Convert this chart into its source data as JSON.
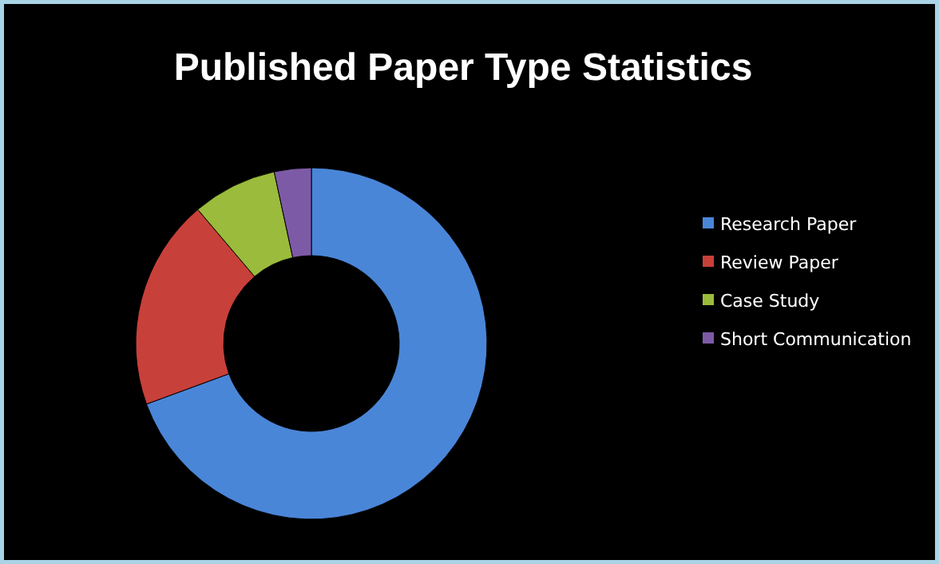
{
  "chart_data": {
    "type": "donut",
    "title": "Published Paper Type Statistics",
    "categories": [
      "Research Paper",
      "Review Paper",
      "Case Study",
      "Short Communication"
    ],
    "values": [
      69.4,
      19.4,
      7.8,
      3.4
    ],
    "colors": [
      "#4a86d8",
      "#c8403a",
      "#9bbb3c",
      "#7d5aa6"
    ],
    "legend": "right"
  }
}
